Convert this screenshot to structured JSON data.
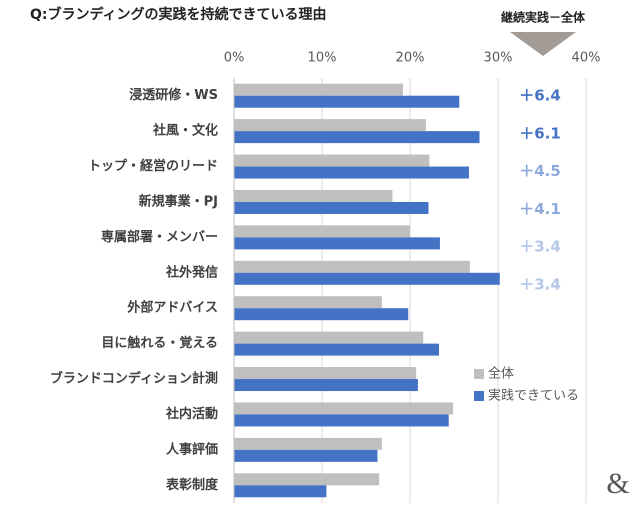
{
  "chart_data": {
    "type": "bar",
    "orientation": "horizontal",
    "title": "Q:ブランディングの実践を持続できている理由",
    "categories": [
      "浸透研修・WS",
      "社風・文化",
      "トップ・経営のリード",
      "新規事業・PJ",
      "専属部署・メンバー",
      "社外発信",
      "外部アドバイス",
      "目に触れる・覚える",
      "ブランドコンディション計測",
      "社内活動",
      "人事評価",
      "表彰制度"
    ],
    "series": [
      {
        "name": "全体",
        "color": "#bfbfbf",
        "values": [
          19.2,
          21.8,
          22.2,
          18.0,
          20.0,
          26.8,
          16.8,
          21.5,
          20.7,
          24.9,
          16.8,
          16.5
        ]
      },
      {
        "name": "実践できている",
        "color": "#4472c4",
        "values": [
          25.6,
          27.9,
          26.7,
          22.1,
          23.4,
          30.2,
          19.8,
          23.3,
          20.9,
          24.4,
          16.3,
          10.5
        ]
      }
    ],
    "xlim": [
      0,
      40
    ],
    "xticks": [
      {
        "value": 0,
        "label": "0%"
      },
      {
        "value": 10,
        "label": "10%"
      },
      {
        "value": 20,
        "label": "20%"
      },
      {
        "value": 30,
        "label": "30%"
      },
      {
        "value": 40,
        "label": "40%"
      }
    ],
    "grid": true,
    "annotation_header": "継続実践－全体",
    "annotations": [
      {
        "text": "＋6.4",
        "color": "#4472c4"
      },
      {
        "text": "＋6.1",
        "color": "#4472c4"
      },
      {
        "text": "＋4.5",
        "color": "#8eaadb"
      },
      {
        "text": "＋4.1",
        "color": "#8eaadb"
      },
      {
        "text": "＋3.4",
        "color": "#b4c7e7"
      },
      {
        "text": "＋3.4",
        "color": "#b4c7e7"
      }
    ],
    "logo": "&"
  }
}
